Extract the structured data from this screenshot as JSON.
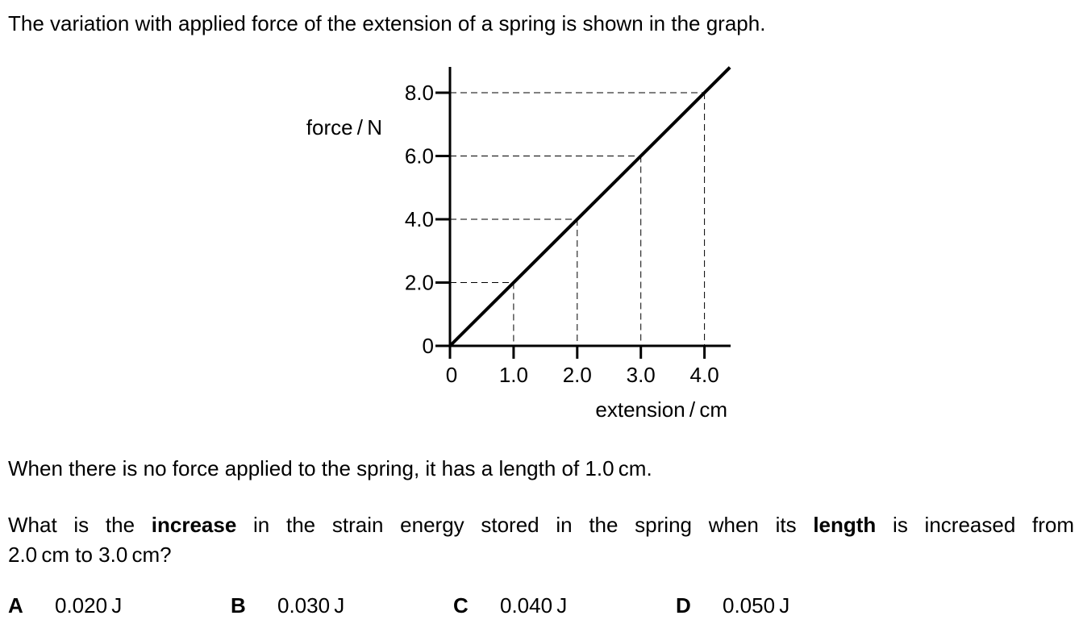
{
  "intro": "The variation with applied force of the extension of a spring is shown in the graph.",
  "statement": "When there is no force applied to the spring, it has a length of 1.0 cm.",
  "question": {
    "part1": "What is the ",
    "bold1": "increase",
    "part2": " in the strain energy stored in the spring when its ",
    "bold2": "length",
    "part3": " is increased from",
    "line2": "2.0 cm to 3.0 cm?"
  },
  "options": [
    {
      "letter": "A",
      "value": "0.020 J"
    },
    {
      "letter": "B",
      "value": "0.030 J"
    },
    {
      "letter": "C",
      "value": "0.040 J"
    },
    {
      "letter": "D",
      "value": "0.050 J"
    }
  ],
  "chart_data": {
    "type": "line",
    "xlabel": "extension / cm",
    "ylabel": "force / N",
    "xlim": [
      0,
      4.4
    ],
    "ylim": [
      0,
      8.8
    ],
    "x_ticks": [
      0,
      1.0,
      2.0,
      3.0,
      4.0
    ],
    "x_tick_labels": [
      "0",
      "1.0",
      "2.0",
      "3.0",
      "4.0"
    ],
    "y_ticks": [
      0,
      2.0,
      4.0,
      6.0,
      8.0
    ],
    "y_tick_labels": [
      "0",
      "2.0",
      "4.0",
      "6.0",
      "8.0"
    ],
    "series": [
      {
        "x": [
          0,
          4.4
        ],
        "y": [
          0,
          8.8
        ]
      }
    ],
    "dashed_guides": [
      {
        "x": 1.0,
        "y": 2.0
      },
      {
        "x": 2.0,
        "y": 4.0
      },
      {
        "x": 3.0,
        "y": 6.0
      },
      {
        "x": 4.0,
        "y": 8.0
      }
    ],
    "grid": false
  }
}
